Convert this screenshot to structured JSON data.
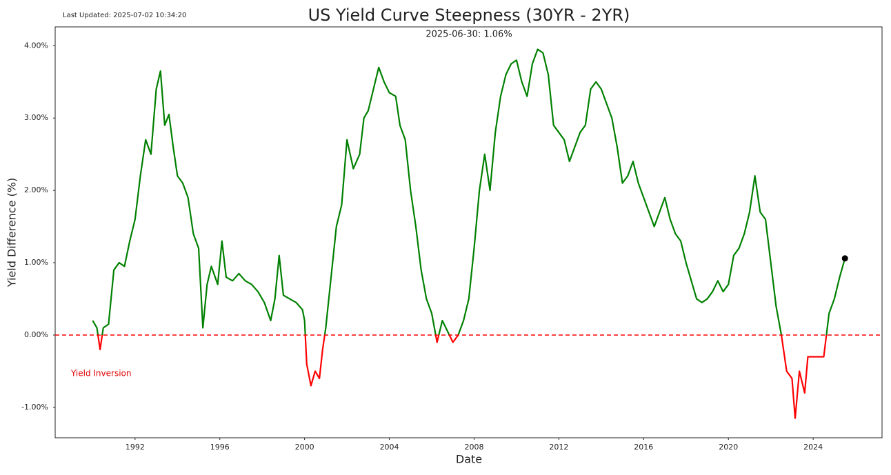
{
  "chart_data": {
    "type": "line",
    "title": "US Yield Curve Steepness (30YR - 2YR)",
    "subtitle": "2025-06-30: 1.06%",
    "updated": "Last Updated: 2025-07-02 10:34:20",
    "annotation": "Yield Inversion",
    "xlabel": "Date",
    "ylabel": "Yield Difference (%)",
    "x": [
      1990.0,
      1990.2,
      1990.35,
      1990.5,
      1990.75,
      1991.0,
      1991.25,
      1991.5,
      1991.75,
      1992.0,
      1992.25,
      1992.5,
      1992.75,
      1993.0,
      1993.2,
      1993.4,
      1993.6,
      1993.8,
      1994.0,
      1994.25,
      1994.5,
      1994.75,
      1995.0,
      1995.2,
      1995.4,
      1995.6,
      1995.9,
      1996.1,
      1996.3,
      1996.6,
      1996.9,
      1997.2,
      1997.5,
      1997.8,
      1998.1,
      1998.4,
      1998.6,
      1998.8,
      1999.0,
      1999.3,
      1999.6,
      1999.9,
      2000.0,
      2000.1,
      2000.3,
      2000.5,
      2000.7,
      2000.85,
      2001.0,
      2001.25,
      2001.5,
      2001.75,
      2002.0,
      2002.3,
      2002.6,
      2002.8,
      2003.0,
      2003.25,
      2003.5,
      2003.75,
      2004.0,
      2004.3,
      2004.5,
      2004.75,
      2005.0,
      2005.25,
      2005.5,
      2005.75,
      2006.0,
      2006.25,
      2006.5,
      2006.75,
      2007.0,
      2007.25,
      2007.5,
      2007.75,
      2008.0,
      2008.25,
      2008.5,
      2008.75,
      2009.0,
      2009.25,
      2009.5,
      2009.75,
      2010.0,
      2010.25,
      2010.5,
      2010.75,
      2011.0,
      2011.25,
      2011.5,
      2011.75,
      2012.0,
      2012.25,
      2012.5,
      2012.75,
      2013.0,
      2013.25,
      2013.5,
      2013.75,
      2014.0,
      2014.25,
      2014.5,
      2014.75,
      2015.0,
      2015.25,
      2015.5,
      2015.75,
      2016.0,
      2016.25,
      2016.5,
      2016.75,
      2017.0,
      2017.25,
      2017.5,
      2017.75,
      2018.0,
      2018.25,
      2018.5,
      2018.75,
      2019.0,
      2019.25,
      2019.5,
      2019.75,
      2020.0,
      2020.25,
      2020.5,
      2020.75,
      2021.0,
      2021.25,
      2021.5,
      2021.75,
      2022.0,
      2022.25,
      2022.5,
      2022.75,
      2023.0,
      2023.15,
      2023.35,
      2023.6,
      2023.75,
      2024.0,
      2024.25,
      2024.5,
      2024.75,
      2025.0,
      2025.25,
      2025.5
    ],
    "series": [
      {
        "name": "30YR - 2YR",
        "color": "#008000",
        "negative_color": "#ff0000",
        "values": [
          0.2,
          0.1,
          -0.2,
          0.1,
          0.15,
          0.9,
          1.0,
          0.95,
          1.3,
          1.6,
          2.2,
          2.7,
          2.5,
          3.4,
          3.65,
          2.9,
          3.05,
          2.6,
          2.2,
          2.1,
          1.9,
          1.4,
          1.2,
          0.1,
          0.7,
          0.95,
          0.7,
          1.3,
          0.8,
          0.75,
          0.85,
          0.75,
          0.7,
          0.6,
          0.45,
          0.2,
          0.5,
          1.1,
          0.55,
          0.5,
          0.45,
          0.35,
          0.2,
          -0.4,
          -0.7,
          -0.5,
          -0.6,
          -0.2,
          0.1,
          0.8,
          1.5,
          1.8,
          2.7,
          2.3,
          2.5,
          3.0,
          3.1,
          3.4,
          3.7,
          3.5,
          3.35,
          3.3,
          2.9,
          2.7,
          2.0,
          1.5,
          0.9,
          0.5,
          0.3,
          -0.1,
          0.2,
          0.05,
          -0.1,
          0.0,
          0.2,
          0.5,
          1.2,
          2.0,
          2.5,
          2.0,
          2.8,
          3.3,
          3.6,
          3.75,
          3.8,
          3.5,
          3.3,
          3.75,
          3.95,
          3.9,
          3.6,
          2.9,
          2.8,
          2.7,
          2.4,
          2.6,
          2.8,
          2.9,
          3.4,
          3.5,
          3.4,
          3.2,
          3.0,
          2.6,
          2.1,
          2.2,
          2.4,
          2.1,
          1.9,
          1.7,
          1.5,
          1.7,
          1.9,
          1.6,
          1.4,
          1.3,
          1.0,
          0.75,
          0.5,
          0.45,
          0.5,
          0.6,
          0.75,
          0.6,
          0.7,
          1.1,
          1.2,
          1.4,
          1.7,
          2.2,
          1.7,
          1.6,
          1.0,
          0.4,
          0.0,
          -0.5,
          -0.6,
          -1.15,
          -0.5,
          -0.8,
          -0.3,
          -0.3,
          -0.3,
          -0.3,
          0.3,
          0.5,
          0.8,
          1.06
        ]
      }
    ],
    "reference_line": {
      "value": 0,
      "color": "#ff0000",
      "style": "dashed"
    },
    "xlim": [
      1988.23,
      2027.25
    ],
    "ylim": [
      -1.42,
      4.26
    ],
    "xticks": [
      1992,
      1996,
      2000,
      2004,
      2008,
      2012,
      2016,
      2020,
      2024
    ],
    "yticks": [
      {
        "value": -1,
        "label": "-1.00%"
      },
      {
        "value": 0,
        "label": "0.00%"
      },
      {
        "value": 1,
        "label": "1.00%"
      },
      {
        "value": 2,
        "label": "2.00%"
      },
      {
        "value": 3,
        "label": "3.00%"
      },
      {
        "value": 4,
        "label": "4.00%"
      }
    ],
    "grid": false
  }
}
